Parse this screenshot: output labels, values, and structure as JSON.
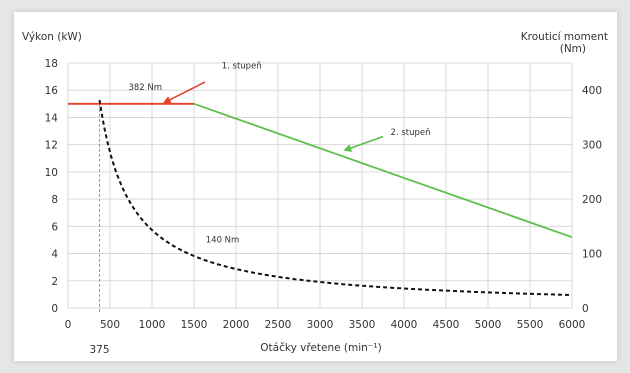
{
  "chart_data": {
    "type": "line",
    "ylabel_left": "Výkon (kW)",
    "ylabel_right_line1": "Krouticí moment",
    "ylabel_right_line2": "(Nm)",
    "xlabel": "Otáčky vřetene (min⁻¹)",
    "xlim": [
      0,
      6000
    ],
    "ylim_left": [
      0,
      18
    ],
    "ylim_right": [
      0,
      450
    ],
    "x_ticks": [
      0,
      500,
      1000,
      1500,
      2000,
      2500,
      3000,
      3500,
      4000,
      4500,
      5000,
      5500,
      6000
    ],
    "y_ticks_left": [
      0,
      2,
      4,
      6,
      8,
      10,
      12,
      14,
      16,
      18
    ],
    "y_ticks_right": [
      0,
      100,
      200,
      300,
      400
    ],
    "grid": true,
    "marker_x": 375,
    "marker_label": "375",
    "series": [
      {
        "axis": "left",
        "color": "#e8402a",
        "style": "solid",
        "x": [
          0,
          1500
        ],
        "y": [
          15,
          15
        ]
      },
      {
        "axis": "left",
        "color": "#5cbf4a",
        "style": "solid",
        "x": [
          1500,
          6000
        ],
        "y": [
          15,
          5.2
        ]
      },
      {
        "axis": "right",
        "color": "#111111",
        "style": "dashed",
        "function": "375*382/x",
        "x_range": [
          375,
          6000
        ]
      }
    ],
    "annotations": [
      {
        "text": "1. stupeň",
        "x": 1830,
        "y": 17.6,
        "arrow_from": [
          1630,
          16.6
        ],
        "arrow_to": [
          1150,
          15.1
        ],
        "color": "#e8402a"
      },
      {
        "text": "382 Nm",
        "x": 720,
        "y": 16.0
      },
      {
        "text": "2. stupeň",
        "x": 3840,
        "y": 12.7,
        "arrow_from": [
          3750,
          12.6
        ],
        "arrow_to": [
          3300,
          11.6
        ],
        "color": "#5cbf4a"
      },
      {
        "text": "140 Nm",
        "x": 1640,
        "y": 4.8
      }
    ]
  }
}
